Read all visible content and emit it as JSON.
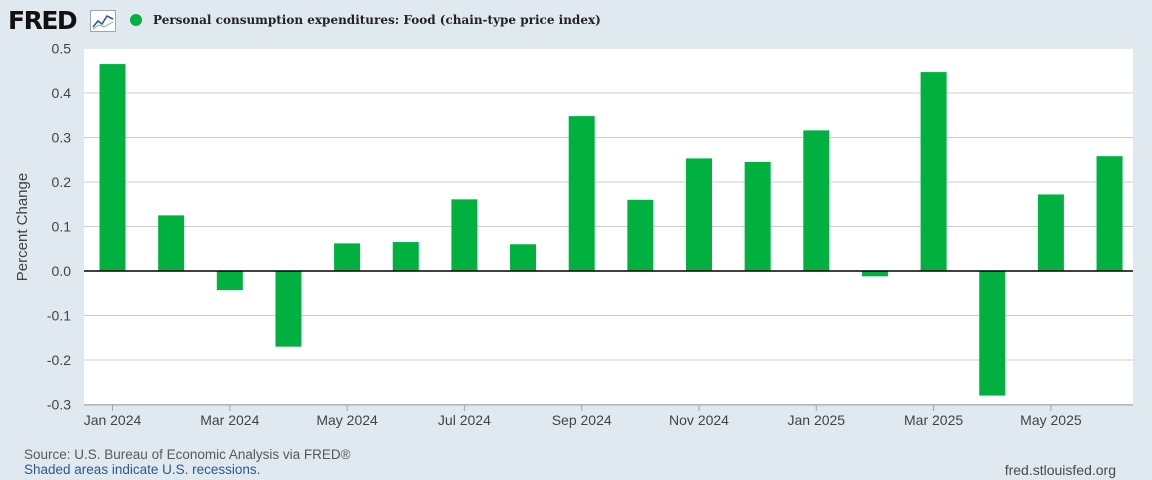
{
  "logo": {
    "text": "FRED",
    "icon": "chart-line-icon"
  },
  "legend": {
    "label": "Personal consumption expenditures: Food (chain-type price index)"
  },
  "footer": {
    "source": "Source: U.S. Bureau of Economic Analysis via FRED®",
    "recession_note": "Shaded areas indicate U.S. recessions.",
    "url": "fred.stlouisfed.org"
  },
  "colors": {
    "series": "#00b140",
    "background": "#e1e9f0",
    "plot": "#ffffff",
    "grid": "#cccccc"
  },
  "chart_data": {
    "type": "bar",
    "title": "",
    "xlabel": "",
    "ylabel": "Percent Change",
    "ylim": [
      -0.3,
      0.5
    ],
    "yticks": [
      {
        "value": 0.5,
        "label": "0.5"
      },
      {
        "value": 0.4,
        "label": "0.4"
      },
      {
        "value": 0.3,
        "label": "0.3"
      },
      {
        "value": 0.2,
        "label": "0.2"
      },
      {
        "value": 0.1,
        "label": "0.1"
      },
      {
        "value": 0.0,
        "label": "0.0"
      },
      {
        "value": -0.1,
        "label": "-0.1"
      },
      {
        "value": -0.2,
        "label": "-0.2"
      },
      {
        "value": -0.3,
        "label": "-0.3"
      }
    ],
    "xtick_labels": [
      "Jan 2024",
      "Mar 2024",
      "May 2024",
      "Jul 2024",
      "Sep 2024",
      "Nov 2024",
      "Jan 2025",
      "Mar 2025",
      "May 2025"
    ],
    "grid": true,
    "legend_position": "top-left",
    "categories": [
      "2024-01",
      "2024-02",
      "2024-03",
      "2024-04",
      "2024-05",
      "2024-06",
      "2024-07",
      "2024-08",
      "2024-09",
      "2024-10",
      "2024-11",
      "2024-12",
      "2025-01",
      "2025-02",
      "2025-03",
      "2025-04",
      "2025-05",
      "2025-06"
    ],
    "series": [
      {
        "name": "Personal consumption expenditures: Food (chain-type price index)",
        "values": [
          0.465,
          0.125,
          -0.043,
          -0.17,
          0.062,
          0.065,
          0.161,
          0.06,
          0.348,
          0.16,
          0.253,
          0.245,
          0.316,
          -0.012,
          0.447,
          -0.28,
          0.172,
          0.258
        ]
      }
    ]
  }
}
